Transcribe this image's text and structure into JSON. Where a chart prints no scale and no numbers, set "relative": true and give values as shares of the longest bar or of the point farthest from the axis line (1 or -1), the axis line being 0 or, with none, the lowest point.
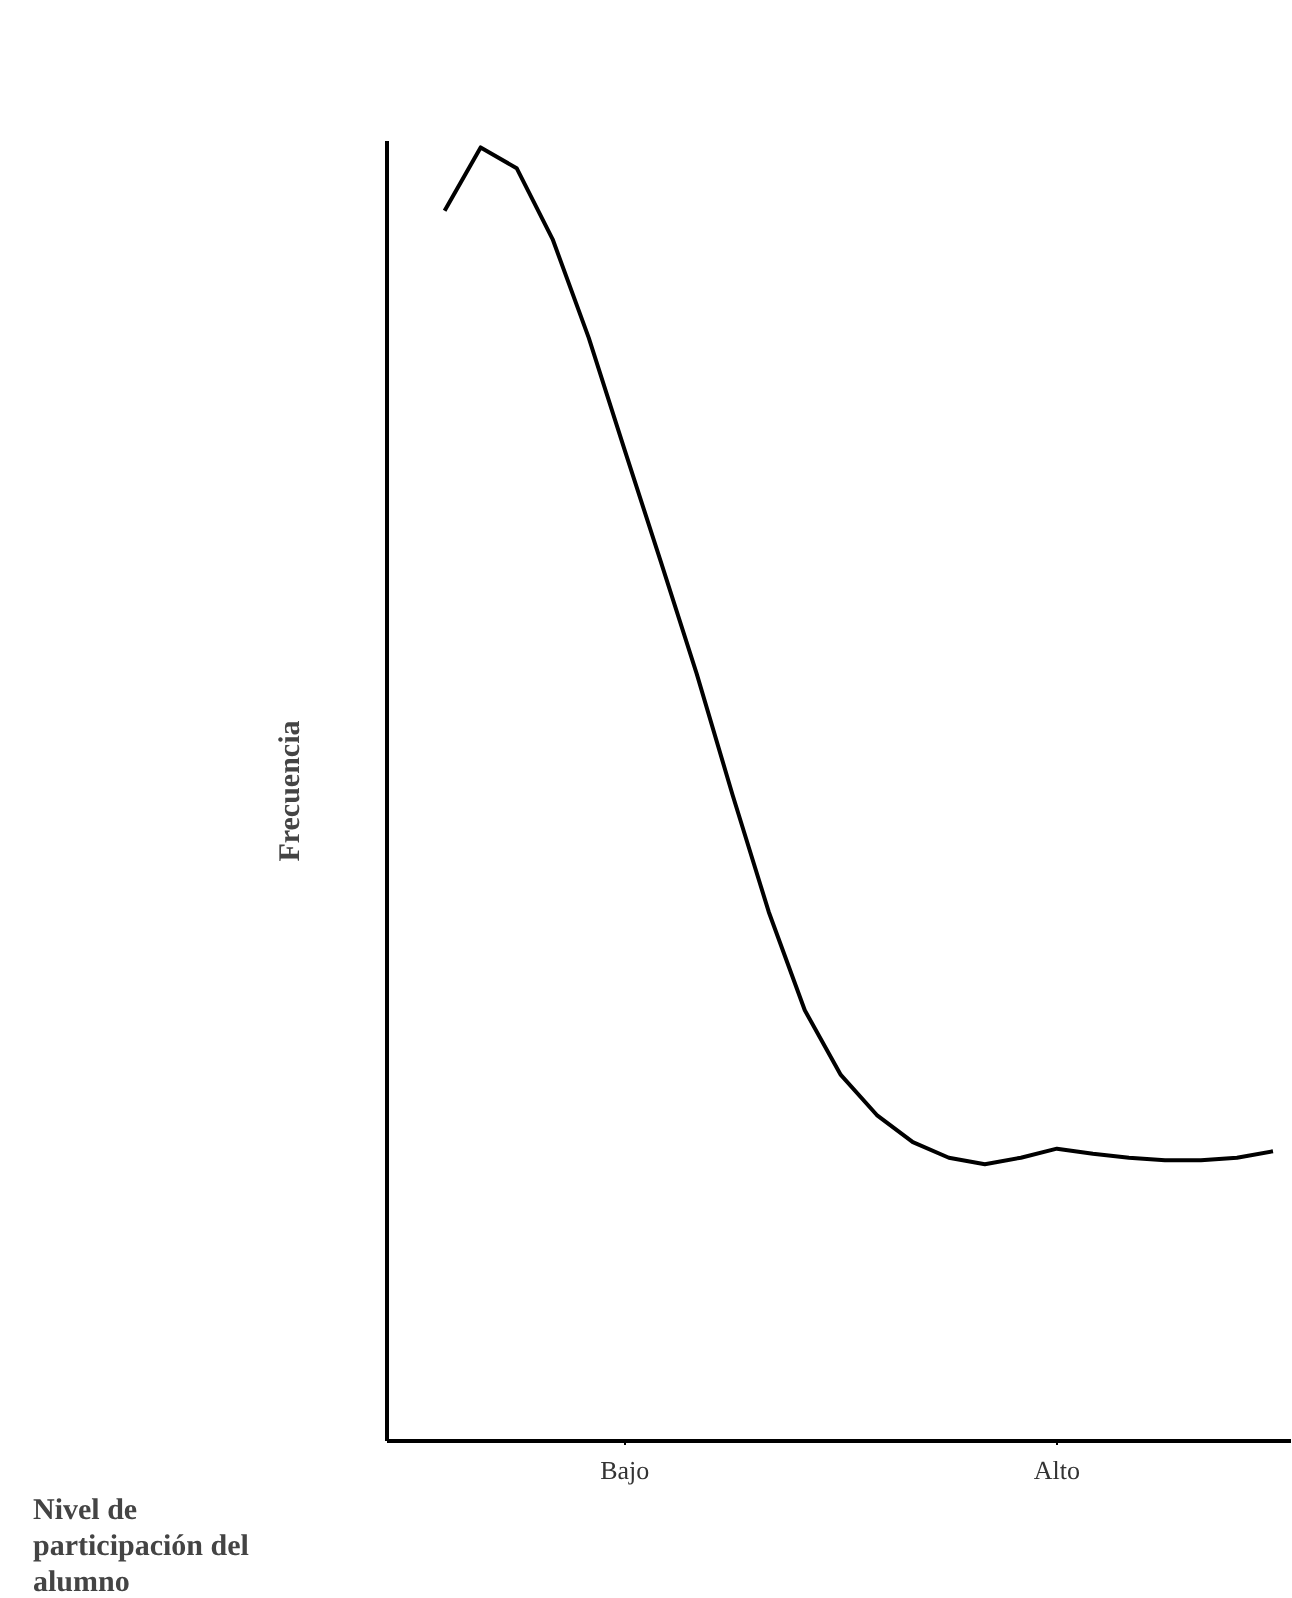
{
  "chart_data": {
    "type": "line",
    "relative": true,
    "xlabel": "Nivel de participación del alumno",
    "ylabel": "Frecuencia",
    "categories": [
      null,
      null,
      null,
      null,
      null,
      "Bajo",
      null,
      null,
      null,
      null,
      null,
      null,
      null,
      null,
      null,
      null,
      null,
      "Alto",
      null,
      null,
      null,
      null,
      null,
      null
    ],
    "grid": false,
    "line_style": "solid",
    "series": [
      {
        "color": "#000000",
        "values": [
          0.951,
          1.0,
          0.984,
          0.929,
          0.853,
          0.766,
          0.68,
          0.593,
          0.499,
          0.409,
          0.333,
          0.283,
          0.252,
          0.231,
          0.219,
          0.214,
          0.219,
          0.226,
          0.222,
          0.219,
          0.217,
          0.217,
          0.219,
          0.224
        ]
      }
    ]
  }
}
